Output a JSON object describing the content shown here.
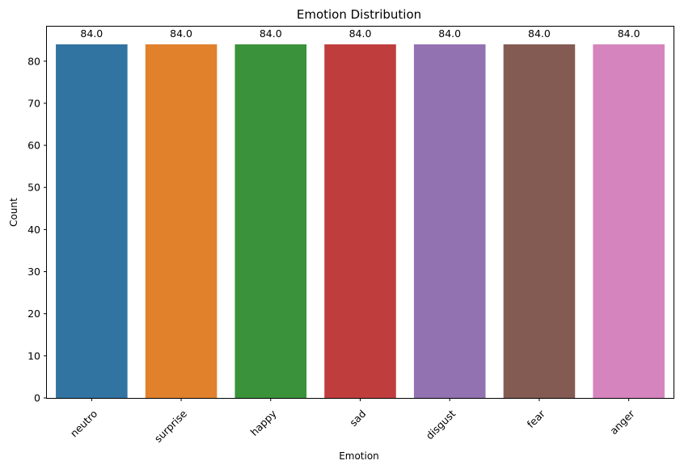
{
  "chart_data": {
    "type": "bar",
    "title": "Emotion Distribution",
    "xlabel": "Emotion",
    "ylabel": "Count",
    "categories": [
      "neutro",
      "surprise",
      "happy",
      "sad",
      "disgust",
      "fear",
      "anger"
    ],
    "values": [
      84,
      84,
      84,
      84,
      84,
      84,
      84
    ],
    "value_labels": [
      "84.0",
      "84.0",
      "84.0",
      "84.0",
      "84.0",
      "84.0",
      "84.0"
    ],
    "colors": [
      "#3274a1",
      "#e1812c",
      "#3a923a",
      "#c03d3e",
      "#9372b2",
      "#845b53",
      "#d684bd"
    ],
    "ylim": [
      0,
      88.2
    ],
    "yticks": [
      0,
      10,
      20,
      30,
      40,
      50,
      60,
      70,
      80
    ],
    "grid": false,
    "legend": "none",
    "xtick_rotation_deg": 45
  }
}
